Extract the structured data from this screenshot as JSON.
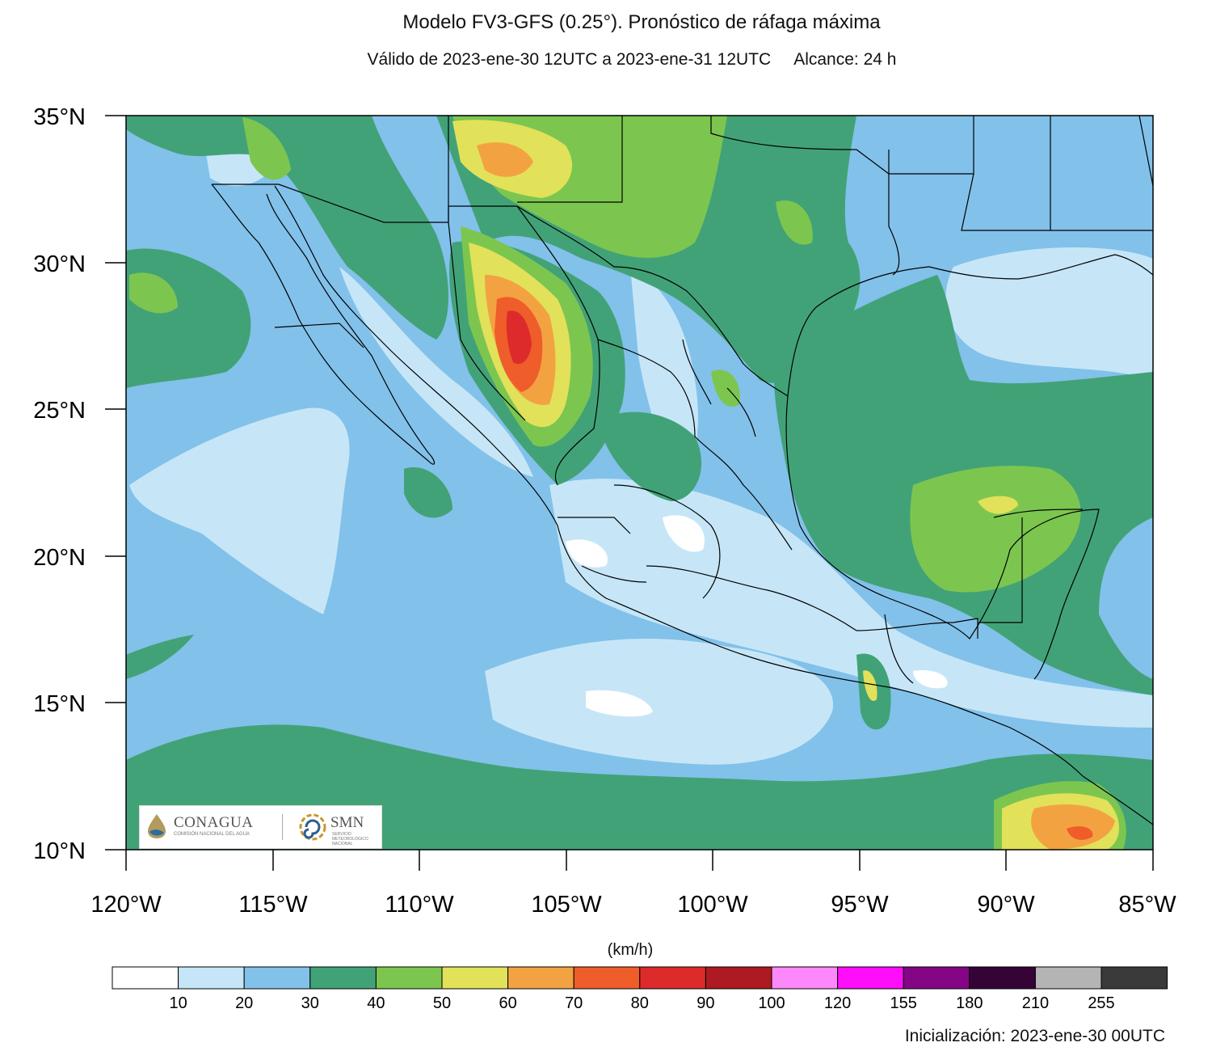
{
  "header": {
    "title": "Modelo FV3-GFS (0.25°). Pronóstico de ráfaga máxima",
    "subtitle": "Válido de 2023-ene-30 12UTC a 2023-ene-31 12UTC     Alcance: 24 h"
  },
  "map": {
    "lat_labels": [
      "35°N",
      "30°N",
      "25°N",
      "20°N",
      "15°N",
      "10°N"
    ],
    "lon_labels": [
      "120°W",
      "115°W",
      "110°W",
      "105°W",
      "100°W",
      "95°W",
      "90°W",
      "85°W"
    ],
    "extent": {
      "lon_min": -120,
      "lon_max": -85,
      "lat_min": 10,
      "lat_max": 35
    },
    "variable": "ráfaga máxima"
  },
  "colorbar": {
    "unit": "(km/h)",
    "labels": [
      "10",
      "20",
      "30",
      "40",
      "50",
      "60",
      "70",
      "80",
      "90",
      "100",
      "120",
      "155",
      "180",
      "210",
      "255"
    ],
    "colors": [
      "#ffffff",
      "#c6e6f7",
      "#82c1ea",
      "#42a277",
      "#7cc650",
      "#e2e15a",
      "#f3a242",
      "#ef5d2a",
      "#dd2b2b",
      "#ae1a21",
      "#fd88fb",
      "#fe0efa",
      "#850685",
      "#360337",
      "#b4b4b4",
      "#3a3a3a"
    ]
  },
  "logos": {
    "conagua": "CONAGUA",
    "conagua_sub": "COMISIÓN NACIONAL DEL AGUA",
    "smn": "SMN",
    "smn_sub": "SERVICIO METEOROLÓGICO NACIONAL"
  },
  "footer": {
    "init": "Inicialización: 2023-ene-30 00UTC"
  }
}
